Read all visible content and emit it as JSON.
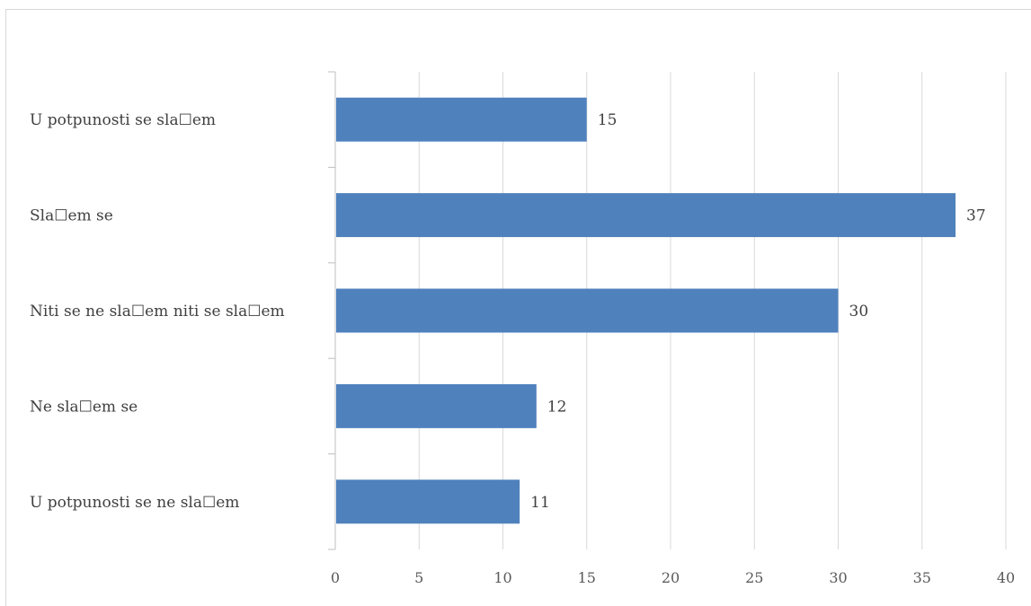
{
  "chart_data": {
    "type": "bar",
    "orientation": "horizontal",
    "categories": [
      "U potpunosti se sla☐em",
      "Sla☐em se",
      "Niti se ne sla☐em niti se sla☐em",
      "Ne sla☐em se",
      "U potpunosti se ne sla☐em"
    ],
    "values": [
      15,
      37,
      30,
      12,
      11
    ],
    "data_labels": [
      "15",
      "37",
      "30",
      "12",
      "11"
    ],
    "xlim": [
      0,
      40
    ],
    "xticks": [
      0,
      5,
      10,
      15,
      20,
      25,
      30,
      35,
      40
    ],
    "xtick_labels": [
      "0",
      "5",
      "10",
      "15",
      "20",
      "25",
      "30",
      "35",
      "40"
    ],
    "title": "",
    "xlabel": "",
    "ylabel": "",
    "grid": "vertical",
    "legend": "none",
    "colors": {
      "bar": "#4f81bd",
      "grid": "#d9d9d9",
      "axis": "#bfbfbf"
    }
  }
}
